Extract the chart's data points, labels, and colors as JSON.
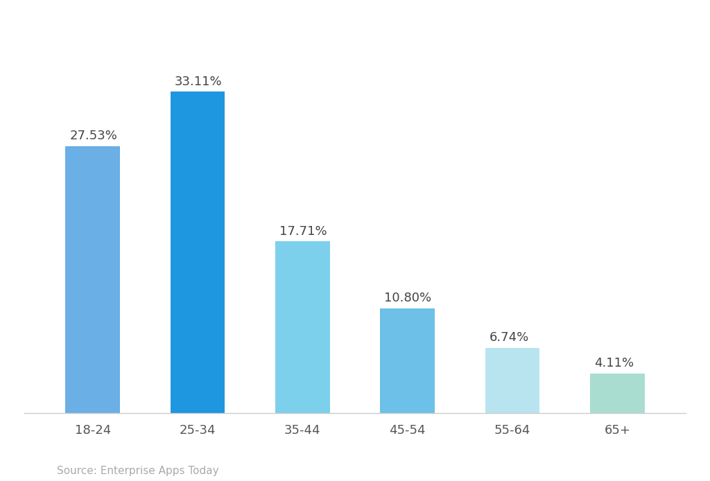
{
  "categories": [
    "18-24",
    "25-34",
    "35-44",
    "45-54",
    "55-64",
    "65+"
  ],
  "values": [
    27.53,
    33.11,
    17.71,
    10.8,
    6.74,
    4.11
  ],
  "labels": [
    "27.53%",
    "33.11%",
    "17.71%",
    "10.80%",
    "6.74%",
    "4.11%"
  ],
  "bar_colors": [
    "#6AAFE6",
    "#1E96E0",
    "#7DD0EC",
    "#6DC0E8",
    "#B8E4F0",
    "#A8DDD0"
  ],
  "background_color": "#ffffff",
  "source_text": "Source: Enterprise Apps Today",
  "label_fontsize": 13,
  "tick_fontsize": 13,
  "source_fontsize": 11,
  "ylim": [
    0,
    40
  ],
  "label_color": "#444444"
}
